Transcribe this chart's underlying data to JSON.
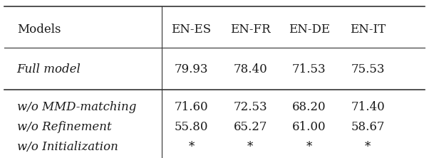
{
  "col_headers": [
    "Models",
    "EN-ES",
    "EN-FR",
    "EN-DE",
    "EN-IT"
  ],
  "rows": [
    {
      "model": "Full model",
      "values": [
        "79.93",
        "78.40",
        "71.53",
        "75.53"
      ],
      "italic": true
    },
    {
      "model": "w/o MMD-matching",
      "values": [
        "71.60",
        "72.53",
        "68.20",
        "71.40"
      ],
      "italic": true
    },
    {
      "model": "w/o Refinement",
      "values": [
        "55.80",
        "65.27",
        "61.00",
        "58.67"
      ],
      "italic": true
    },
    {
      "model": "w/o Initialization",
      "values": [
        "*",
        "*",
        "*",
        "*"
      ],
      "italic": true
    }
  ],
  "bg_color": "#ffffff",
  "text_color": "#1a1a1a",
  "line_color": "#333333",
  "font_size": 12,
  "figsize": [
    6.02,
    2.22
  ],
  "dpi": 100
}
